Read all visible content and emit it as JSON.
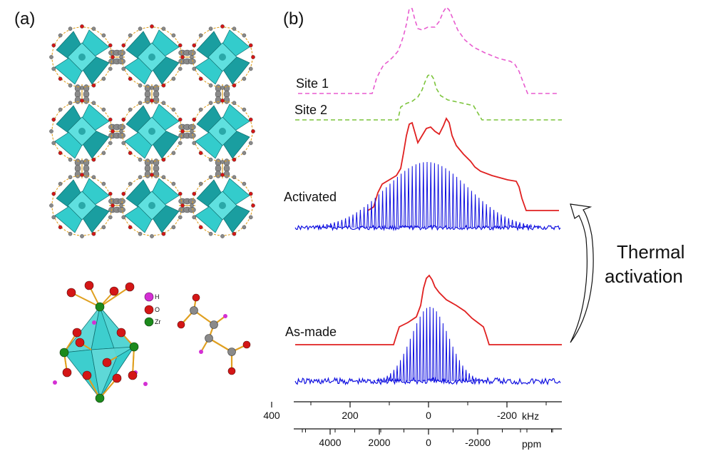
{
  "panels": {
    "a": {
      "label": "(a)"
    },
    "b": {
      "label": "(b)"
    }
  },
  "legend": [
    {
      "symbol": "H",
      "color": "#d42fd4"
    },
    {
      "symbol": "O",
      "color": "#d41616"
    },
    {
      "symbol": "Zr",
      "color": "#1c8a1c"
    }
  ],
  "colors": {
    "polyhedron": "#33cccc",
    "polyhedron_dark": "#1a9ea0",
    "carbon": "#8a8a8a",
    "bond": "#e0a020",
    "site1": "#e85ccf",
    "site2": "#7cc43c",
    "simulation": "#e02020",
    "experiment": "#1010e0"
  },
  "labels": {
    "site1": "Site 1",
    "site2": "Site 2",
    "activated": "Activated",
    "as_made": "As-made",
    "arrow_line1": "Thermal",
    "arrow_line2": "activation"
  },
  "chart_data": {
    "type": "line",
    "x_axes": [
      {
        "unit": "kHz",
        "ticks": [
          "400",
          "200",
          "0",
          "-200"
        ],
        "values": [
          400,
          200,
          0,
          -200
        ]
      },
      {
        "unit": "ppm",
        "ticks": [
          "4000",
          "2000",
          "0",
          "-2000"
        ],
        "values": [
          4000,
          2000,
          0,
          -2000
        ]
      }
    ],
    "series": [
      {
        "name": "Site 1",
        "style": "dashed"
      },
      {
        "name": "Site 2",
        "style": "dashed"
      },
      {
        "name": "Activated",
        "style": "solid"
      },
      {
        "name": "As-made",
        "style": "solid"
      }
    ]
  }
}
